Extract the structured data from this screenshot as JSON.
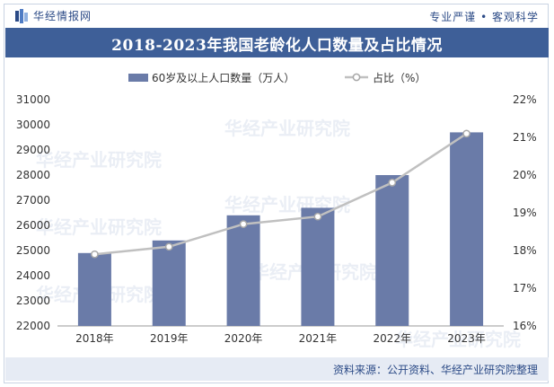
{
  "header": {
    "brand": "华经情报网",
    "tagline": "专业严谨 • 客观科学"
  },
  "chart_title": "2018-2023年我国老龄化人口数量及占比情况",
  "source": "资料来源：公开资料、华经产业研究院整理",
  "watermark": "华经产业研究院",
  "colors": {
    "bar": "#6a7ba8",
    "line": "#c0c0c0",
    "title_band": "#3e5f98",
    "brand_text": "#2b4a86"
  },
  "chart_data": {
    "type": "bar",
    "categories": [
      "2018年",
      "2019年",
      "2020年",
      "2021年",
      "2022年",
      "2023年"
    ],
    "series": [
      {
        "name": "60岁及以上人口数量（万人）",
        "type": "bar",
        "axis": "left",
        "values": [
          24900,
          25400,
          26400,
          26700,
          28000,
          29700
        ]
      },
      {
        "name": "占比（%）",
        "type": "line",
        "axis": "right",
        "values": [
          17.9,
          18.1,
          18.7,
          18.9,
          19.8,
          21.1
        ]
      }
    ],
    "y_left": {
      "min": 22000,
      "max": 31000,
      "ticks": [
        "22000",
        "23000",
        "24000",
        "25000",
        "26000",
        "27000",
        "28000",
        "29000",
        "30000",
        "31000"
      ]
    },
    "y_right": {
      "min": 16,
      "max": 22,
      "ticks": [
        "16%",
        "17%",
        "18%",
        "19%",
        "20%",
        "21%",
        "22%"
      ]
    },
    "legend_position": "top",
    "grid": false
  }
}
